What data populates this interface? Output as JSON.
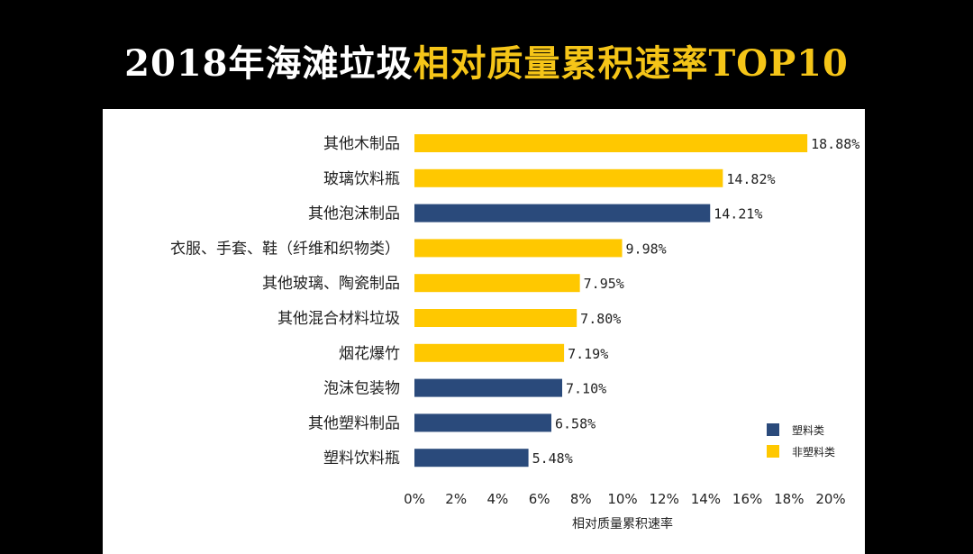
{
  "title": {
    "part1": "2018年海滩垃圾",
    "part2": "相对质量累积速率TOP10"
  },
  "colors": {
    "plastic": "#2a4a7b",
    "non_plastic": "#ffc800",
    "title_accent": "#f5c518"
  },
  "chart_data": {
    "type": "bar",
    "orientation": "horizontal",
    "categories": [
      "其他木制品",
      "玻璃饮料瓶",
      "其他泡沫制品",
      "衣服、手套、鞋（纤维和织物类）",
      "其他玻璃、陶瓷制品",
      "其他混合材料垃圾",
      "烟花爆竹",
      "泡沫包装物",
      "其他塑料制品",
      "塑料饮料瓶"
    ],
    "values": [
      18.88,
      14.82,
      14.21,
      9.98,
      7.95,
      7.8,
      7.19,
      7.1,
      6.58,
      5.48
    ],
    "value_labels": [
      "18.88%",
      "14.82%",
      "14.21%",
      "9.98%",
      "7.95%",
      "7.80%",
      "7.19%",
      "7.10%",
      "6.58%",
      "5.48%"
    ],
    "groups": [
      "非塑料类",
      "非塑料类",
      "塑料类",
      "非塑料类",
      "非塑料类",
      "非塑料类",
      "非塑料类",
      "塑料类",
      "塑料类",
      "塑料类"
    ],
    "xlim": [
      0,
      20
    ],
    "xticks": [
      0,
      2,
      4,
      6,
      8,
      10,
      12,
      14,
      16,
      18,
      20
    ],
    "xtick_labels": [
      "0%",
      "2%",
      "4%",
      "6%",
      "8%",
      "10%",
      "12%",
      "14%",
      "16%",
      "18%",
      "20%"
    ],
    "xlabel": "相对质量累积速率",
    "grid": false,
    "legend": {
      "position": "bottom-right",
      "entries": [
        {
          "name": "塑料类",
          "color": "#2a4a7b"
        },
        {
          "name": "非塑料类",
          "color": "#ffc800"
        }
      ]
    }
  }
}
